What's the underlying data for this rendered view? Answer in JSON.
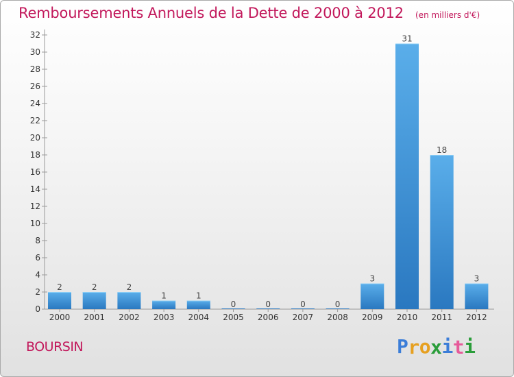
{
  "chart_data": {
    "type": "bar",
    "title": "Remboursements Annuels de la Dette de 2000 à 2012",
    "unit_note": "(en milliers d'€)",
    "categories": [
      "2000",
      "2001",
      "2002",
      "2003",
      "2004",
      "2005",
      "2006",
      "2007",
      "2008",
      "2009",
      "2010",
      "2011",
      "2012"
    ],
    "values": [
      2,
      2,
      2,
      1,
      1,
      0,
      0,
      0,
      0,
      3,
      31,
      18,
      3
    ],
    "ylim": [
      0,
      32
    ],
    "yticks": [
      0,
      2,
      4,
      6,
      8,
      10,
      12,
      14,
      16,
      18,
      20,
      22,
      24,
      26,
      28,
      30,
      32
    ],
    "grid": false,
    "bar_color": "#3d8fd4"
  },
  "footer": {
    "commune": "BOURSIN",
    "brand_letters": [
      "P",
      "r",
      "o",
      "x",
      "i",
      "t",
      "i"
    ],
    "brand_colors": [
      "#3b7dd8",
      "#e6a020",
      "#e6a020",
      "#2a9d3a",
      "#3b7dd8",
      "#e65a9a",
      "#2a9d3a"
    ]
  }
}
